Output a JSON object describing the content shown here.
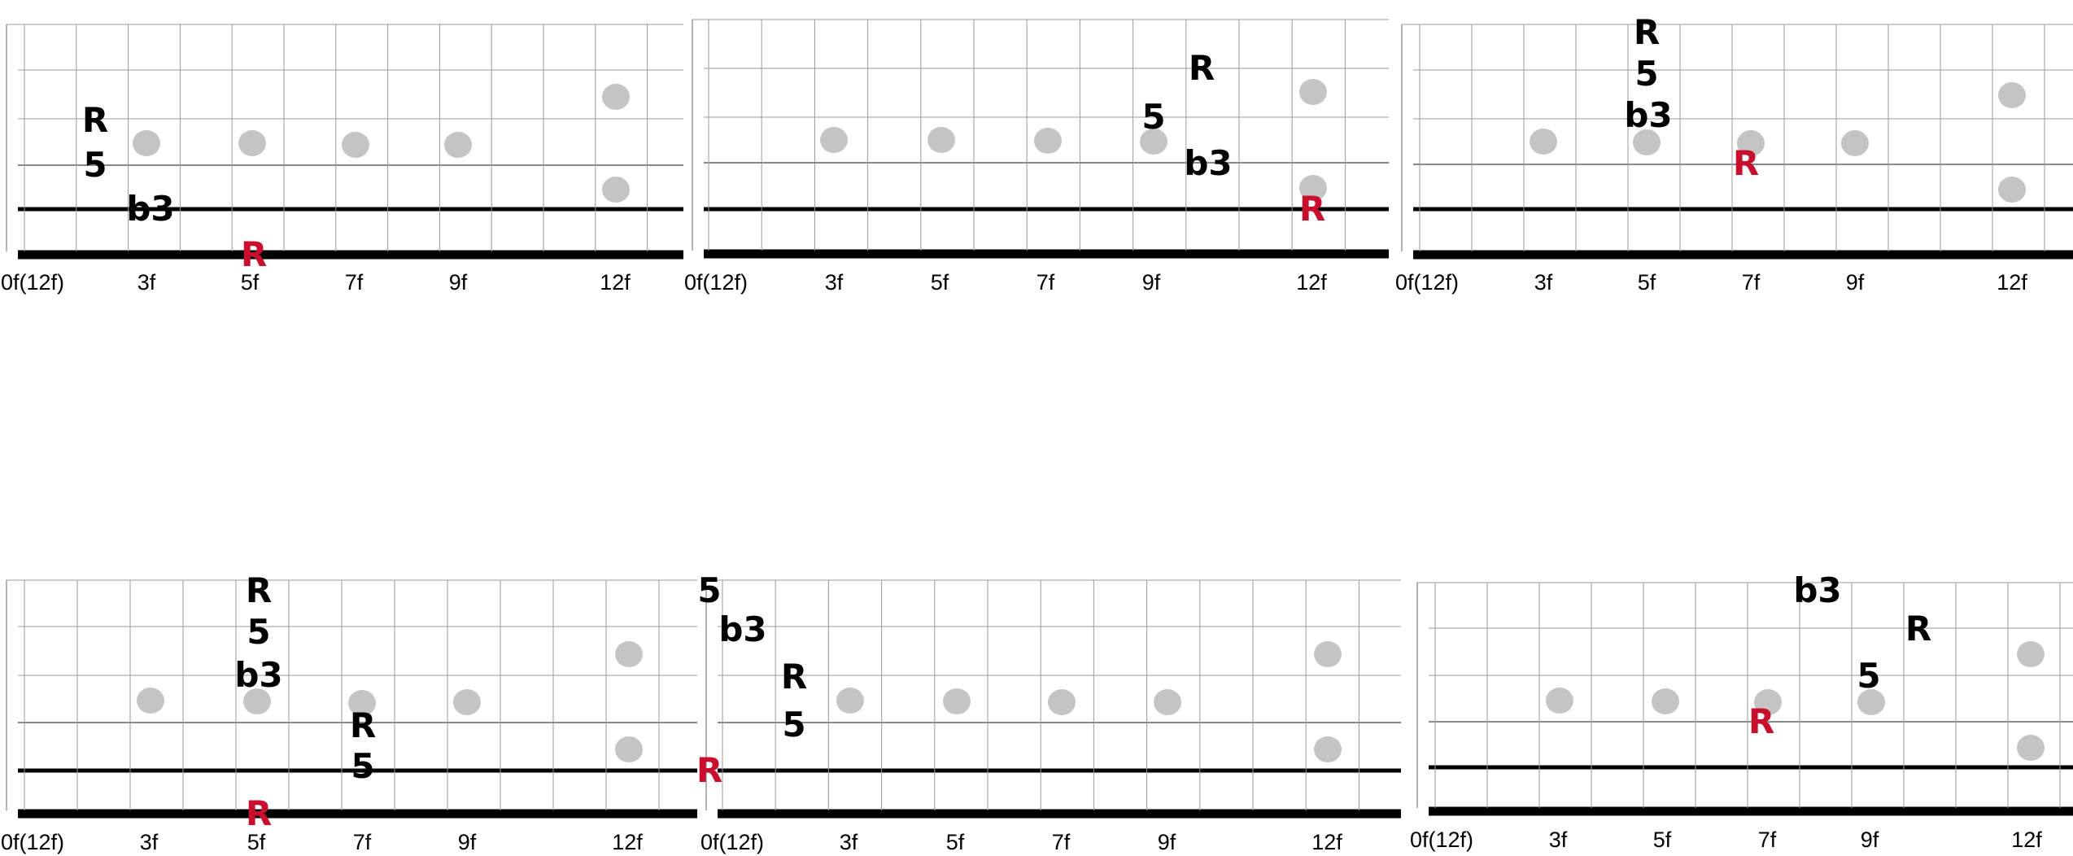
{
  "colors": {
    "root": "#c8102e",
    "note": "#000000",
    "marker": "#c4c4c4",
    "grid": "#9a9a9a",
    "line": "#000000"
  },
  "diagrams": [
    {
      "fret_labels": [
        "0f(12f)",
        "3f",
        "5f",
        "7f",
        "9f",
        "12f"
      ],
      "notes": [
        {
          "text": "R",
          "root": false
        },
        {
          "text": "5",
          "root": false
        },
        {
          "text": "b3",
          "root": false
        },
        {
          "text": "R",
          "root": true
        }
      ]
    },
    {
      "fret_labels": [
        "0f(12f)",
        "3f",
        "5f",
        "7f",
        "9f",
        "12f"
      ],
      "notes": [
        {
          "text": "R",
          "root": false
        },
        {
          "text": "5",
          "root": false
        },
        {
          "text": "b3",
          "root": false
        },
        {
          "text": "R",
          "root": true
        }
      ]
    },
    {
      "fret_labels": [
        "0f(12f)",
        "3f",
        "5f",
        "7f",
        "9f",
        "12f"
      ],
      "notes": [
        {
          "text": "R",
          "root": false
        },
        {
          "text": "5",
          "root": false
        },
        {
          "text": "b3",
          "root": false
        },
        {
          "text": "R",
          "root": true
        }
      ]
    },
    {
      "fret_labels": [
        "0f(12f)",
        "3f",
        "5f",
        "7f",
        "9f",
        "12f"
      ],
      "notes": [
        {
          "text": "R",
          "root": false
        },
        {
          "text": "5",
          "root": false
        },
        {
          "text": "b3",
          "root": false
        },
        {
          "text": "R",
          "root": false
        },
        {
          "text": "5",
          "root": false
        },
        {
          "text": "R",
          "root": true
        }
      ]
    },
    {
      "fret_labels": [
        "0f(12f)",
        "3f",
        "5f",
        "7f",
        "9f",
        "12f"
      ],
      "notes": [
        {
          "text": "5",
          "root": false
        },
        {
          "text": "b3",
          "root": false
        },
        {
          "text": "R",
          "root": false
        },
        {
          "text": "5",
          "root": false
        },
        {
          "text": "R",
          "root": true
        }
      ]
    },
    {
      "fret_labels": [
        "0f(12f)",
        "3f",
        "5f",
        "7f",
        "9f",
        "12f"
      ],
      "notes": [
        {
          "text": "b3",
          "root": false
        },
        {
          "text": "R",
          "root": false
        },
        {
          "text": "5",
          "root": false
        },
        {
          "text": "R",
          "root": true
        }
      ]
    }
  ]
}
